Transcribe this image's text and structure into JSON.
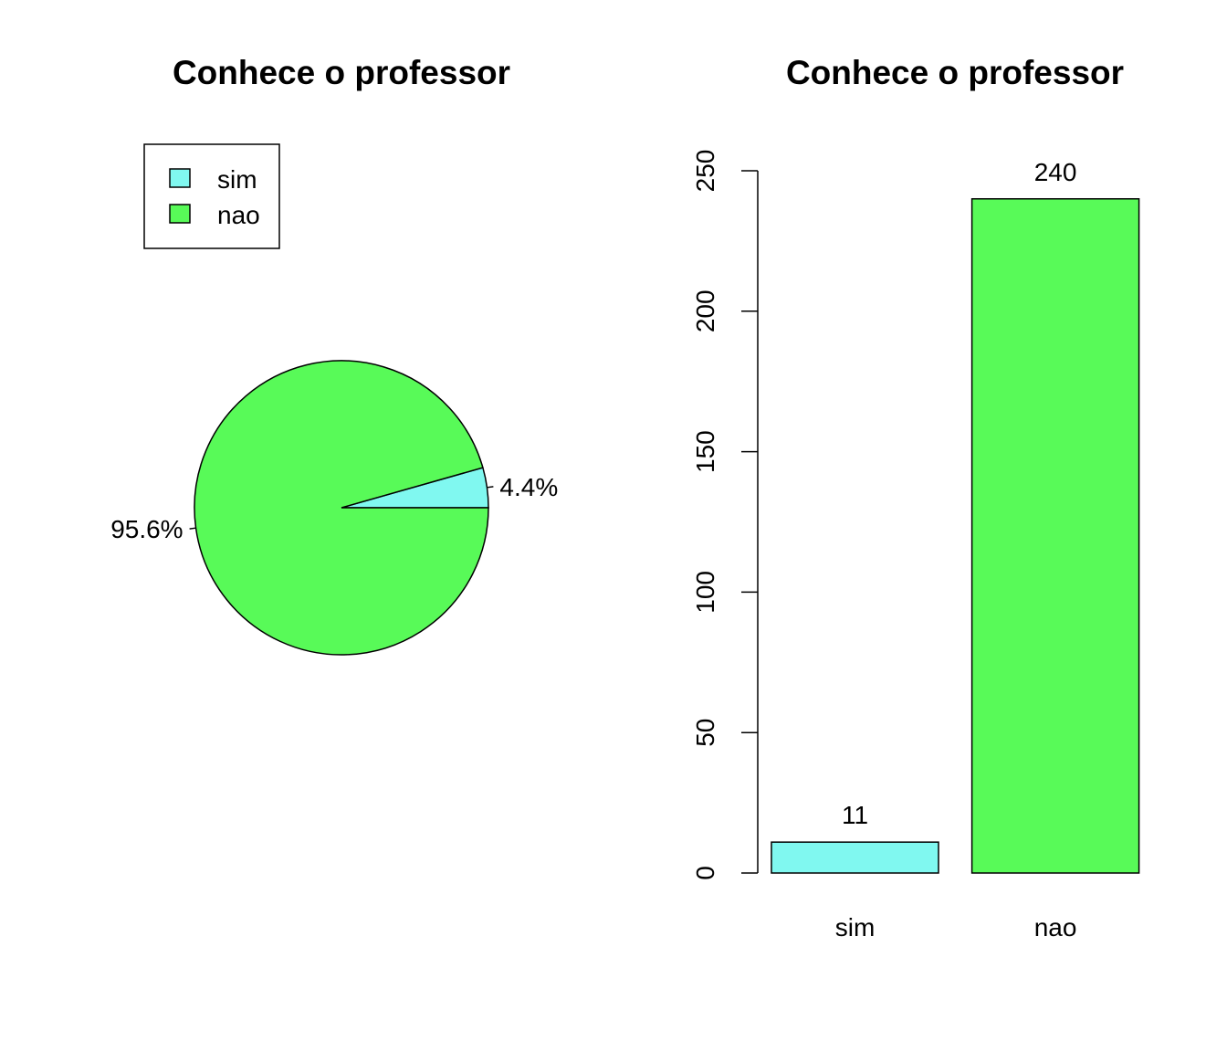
{
  "chart_data": [
    {
      "type": "pie",
      "title": "Conhece o professor",
      "categories": [
        "sim",
        "nao"
      ],
      "values": [
        4.4,
        95.6
      ],
      "slice_labels": [
        "4.4%",
        "95.6%"
      ],
      "colors": [
        "#80F8F0",
        "#58FA58"
      ],
      "legend": {
        "placement": "top-left",
        "entries": [
          "sim",
          "nao"
        ]
      }
    },
    {
      "type": "bar",
      "title": "Conhece o professor",
      "categories": [
        "sim",
        "nao"
      ],
      "values": [
        11,
        240
      ],
      "data_labels": [
        "11",
        "240"
      ],
      "colors": [
        "#80F8F0",
        "#58FA58"
      ],
      "ylim": [
        0,
        250
      ],
      "yticks": [
        0,
        50,
        100,
        150,
        200,
        250
      ],
      "ytick_labels": [
        "0",
        "50",
        "100",
        "150",
        "200",
        "250"
      ],
      "xlabel": "",
      "ylabel": "",
      "grid": false
    }
  ]
}
